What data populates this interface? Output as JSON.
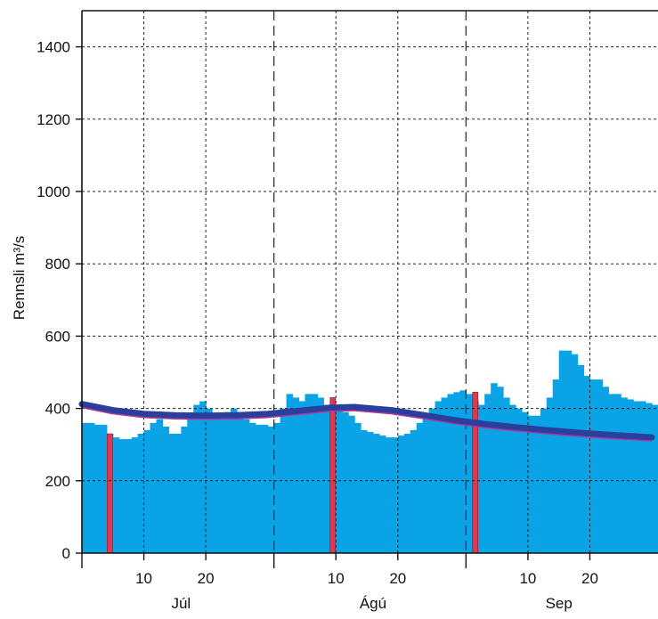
{
  "chart_data": {
    "type": "bar",
    "title": "",
    "ylabel": "Rennsli m³/s",
    "ylim": [
      0,
      1500
    ],
    "grid": true,
    "yticks": [
      {
        "value": 0,
        "label": "0"
      },
      {
        "value": 200,
        "label": "200"
      },
      {
        "value": 400,
        "label": "400"
      },
      {
        "value": 600,
        "label": "600"
      },
      {
        "value": 800,
        "label": "800"
      },
      {
        "value": 1000,
        "label": "1000"
      },
      {
        "value": 1200,
        "label": "1200"
      },
      {
        "value": 1400,
        "label": "1400"
      }
    ],
    "x_start": "July 1",
    "day_ticks": [
      {
        "day": 10,
        "label": "10"
      },
      {
        "day": 20,
        "label": "20"
      },
      {
        "day": 41,
        "label": "10"
      },
      {
        "day": 51,
        "label": "20"
      },
      {
        "day": 72,
        "label": "10"
      },
      {
        "day": 82,
        "label": "20"
      }
    ],
    "month_boundaries": [
      31,
      62
    ],
    "months": [
      {
        "label": "Júl",
        "center_day": 16
      },
      {
        "label": "Ágú",
        "center_day": 47
      },
      {
        "label": "Sep",
        "center_day": 77
      }
    ],
    "daily_flow": [
      360,
      360,
      355,
      355,
      330,
      320,
      315,
      315,
      320,
      330,
      340,
      360,
      370,
      350,
      330,
      330,
      350,
      370,
      410,
      420,
      400,
      380,
      370,
      390,
      400,
      390,
      370,
      360,
      355,
      355,
      350,
      360,
      400,
      440,
      430,
      420,
      440,
      440,
      430,
      410,
      410,
      400,
      390,
      380,
      360,
      340,
      335,
      330,
      325,
      320,
      320,
      325,
      330,
      340,
      360,
      380,
      400,
      420,
      430,
      440,
      445,
      450,
      440,
      420,
      410,
      440,
      470,
      460,
      430,
      410,
      400,
      390,
      380,
      380,
      400,
      430,
      480,
      560,
      560,
      550,
      520,
      490,
      480,
      480,
      460,
      440,
      440,
      430,
      425,
      420,
      420,
      415,
      410
    ],
    "measurements": [
      {
        "day": 4,
        "value": 330
      },
      {
        "day": 40,
        "value": 430
      },
      {
        "day": 63,
        "value": 445
      }
    ],
    "mean_curve": [
      {
        "day": 0,
        "value": 412
      },
      {
        "day": 5,
        "value": 395
      },
      {
        "day": 10,
        "value": 385
      },
      {
        "day": 15,
        "value": 381
      },
      {
        "day": 20,
        "value": 380
      },
      {
        "day": 25,
        "value": 381
      },
      {
        "day": 30,
        "value": 385
      },
      {
        "day": 35,
        "value": 393
      },
      {
        "day": 40,
        "value": 402
      },
      {
        "day": 44,
        "value": 404
      },
      {
        "day": 50,
        "value": 395
      },
      {
        "day": 55,
        "value": 382
      },
      {
        "day": 60,
        "value": 368
      },
      {
        "day": 65,
        "value": 357
      },
      {
        "day": 70,
        "value": 348
      },
      {
        "day": 75,
        "value": 340
      },
      {
        "day": 80,
        "value": 333
      },
      {
        "day": 85,
        "value": 327
      },
      {
        "day": 90,
        "value": 322
      },
      {
        "day": 92,
        "value": 320
      }
    ],
    "colors": {
      "flow": "#0aa3e6",
      "measurement": "#e0384e",
      "mean_curve": "#2a3f9c",
      "mean_curve_edge": "#b0359a",
      "grid": "#222222",
      "axis": "#111111"
    }
  }
}
